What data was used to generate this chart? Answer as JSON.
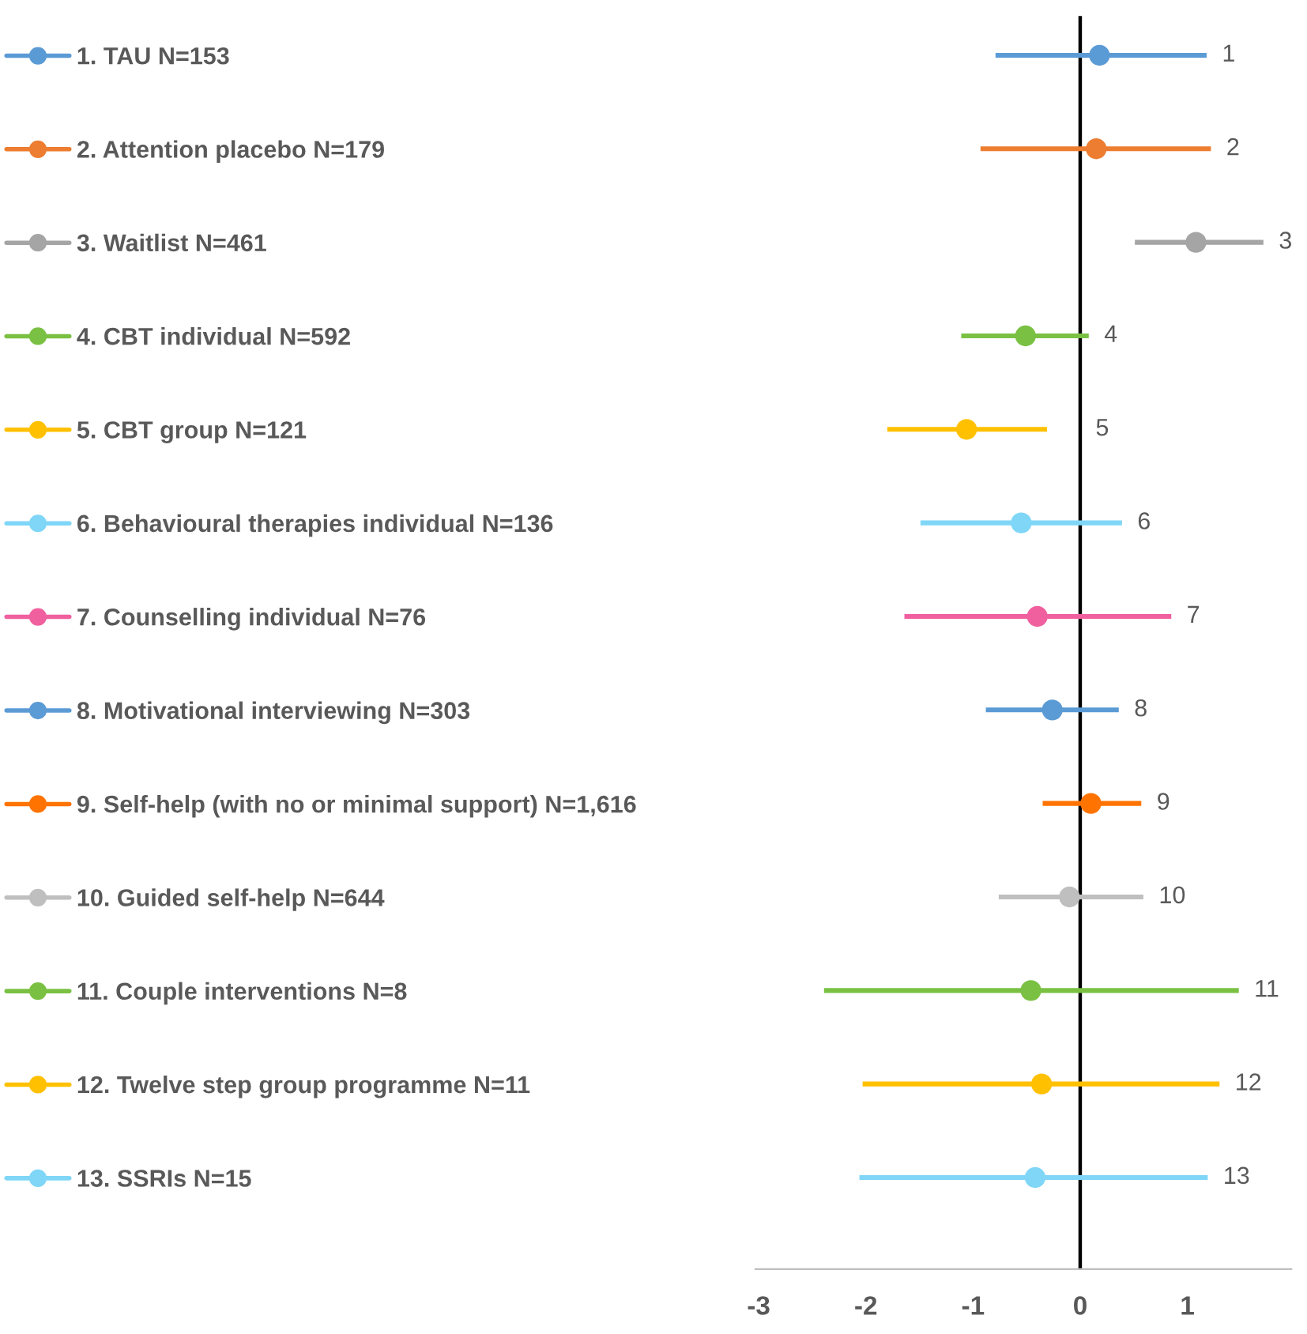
{
  "chart_data": {
    "type": "scatter",
    "orientation": "horizontal",
    "marker": "circle",
    "legend": "left",
    "tick_labels": "x",
    "categories": [
      "1",
      "2",
      "3",
      "4",
      "5",
      "6",
      "7",
      "8",
      "9",
      "10",
      "11",
      "12",
      "13"
    ],
    "xlim": [
      -3.03,
      1.97
    ],
    "xticks": [
      -3,
      -2,
      -1,
      0,
      1
    ],
    "ref_lines": [
      {
        "axis": "x",
        "value": 0,
        "color": "#000000"
      }
    ],
    "series": [
      {
        "name": "1. TAU N=153",
        "color": "#5b9bd5",
        "values": [
          0.18,
          null,
          null,
          null,
          null,
          null,
          null,
          null,
          null,
          null,
          null,
          null,
          null
        ],
        "errors": [
          [
            -0.79,
            1.18
          ],
          null,
          null,
          null,
          null,
          null,
          null,
          null,
          null,
          null,
          null,
          null,
          null
        ]
      },
      {
        "name": "2. Attention placebo N=179",
        "color": "#ed7d31",
        "values": [
          null,
          0.15,
          null,
          null,
          null,
          null,
          null,
          null,
          null,
          null,
          null,
          null,
          null
        ],
        "errors": [
          null,
          [
            -0.93,
            1.22
          ],
          null,
          null,
          null,
          null,
          null,
          null,
          null,
          null,
          null,
          null,
          null
        ]
      },
      {
        "name": "3. Waitlist N=461",
        "color": "#a5a5a5",
        "values": [
          null,
          null,
          1.08,
          null,
          null,
          null,
          null,
          null,
          null,
          null,
          null,
          null,
          null
        ],
        "errors": [
          null,
          null,
          [
            0.51,
            1.71
          ],
          null,
          null,
          null,
          null,
          null,
          null,
          null,
          null,
          null,
          null
        ]
      },
      {
        "name": "4. CBT individual N=592",
        "color": "#7ac143",
        "values": [
          null,
          null,
          null,
          -0.51,
          null,
          null,
          null,
          null,
          null,
          null,
          null,
          null,
          null
        ],
        "errors": [
          null,
          null,
          null,
          [
            -1.11,
            0.08
          ],
          null,
          null,
          null,
          null,
          null,
          null,
          null,
          null,
          null
        ]
      },
      {
        "name": "5. CBT group N=121",
        "color": "#ffc000",
        "values": [
          null,
          null,
          null,
          null,
          -1.06,
          null,
          null,
          null,
          null,
          null,
          null,
          null,
          null
        ],
        "errors": [
          null,
          null,
          null,
          null,
          [
            -1.8,
            -0.31
          ],
          null,
          null,
          null,
          null,
          null,
          null,
          null,
          null
        ]
      },
      {
        "name": "6. Behavioural therapies individual N=136",
        "color": "#7fd6f7",
        "values": [
          null,
          null,
          null,
          null,
          null,
          -0.55,
          null,
          null,
          null,
          null,
          null,
          null,
          null
        ],
        "errors": [
          null,
          null,
          null,
          null,
          null,
          [
            -1.49,
            0.39
          ],
          null,
          null,
          null,
          null,
          null,
          null,
          null
        ]
      },
      {
        "name": "7. Counselling individual N=76",
        "color": "#f0609e",
        "values": [
          null,
          null,
          null,
          null,
          null,
          null,
          -0.4,
          null,
          null,
          null,
          null,
          null,
          null
        ],
        "errors": [
          null,
          null,
          null,
          null,
          null,
          null,
          [
            -1.64,
            0.85
          ],
          null,
          null,
          null,
          null,
          null,
          null
        ]
      },
      {
        "name": "8. Motivational interviewing N=303",
        "color": "#5b9bd5",
        "values": [
          null,
          null,
          null,
          null,
          null,
          null,
          null,
          -0.26,
          null,
          null,
          null,
          null,
          null
        ],
        "errors": [
          null,
          null,
          null,
          null,
          null,
          null,
          null,
          [
            -0.88,
            0.36
          ],
          null,
          null,
          null,
          null,
          null
        ]
      },
      {
        "name": "9. Self-help (with no or minimal support) N=1,616",
        "color": "#ff7300",
        "values": [
          null,
          null,
          null,
          null,
          null,
          null,
          null,
          null,
          0.1,
          null,
          null,
          null,
          null
        ],
        "errors": [
          null,
          null,
          null,
          null,
          null,
          null,
          null,
          null,
          [
            -0.35,
            0.57
          ],
          null,
          null,
          null,
          null
        ]
      },
      {
        "name": "10. Guided self-help N=644",
        "color": "#bfbfbf",
        "values": [
          null,
          null,
          null,
          null,
          null,
          null,
          null,
          null,
          null,
          -0.1,
          null,
          null,
          null
        ],
        "errors": [
          null,
          null,
          null,
          null,
          null,
          null,
          null,
          null,
          null,
          [
            -0.76,
            0.59
          ],
          null,
          null,
          null
        ]
      },
      {
        "name": "11. Couple interventions N=8",
        "color": "#7ac143",
        "values": [
          null,
          null,
          null,
          null,
          null,
          null,
          null,
          null,
          null,
          null,
          -0.46,
          null,
          null
        ],
        "errors": [
          null,
          null,
          null,
          null,
          null,
          null,
          null,
          null,
          null,
          null,
          [
            -2.39,
            1.48
          ],
          null,
          null
        ]
      },
      {
        "name": "12. Twelve step group programme N=11",
        "color": "#ffc000",
        "values": [
          null,
          null,
          null,
          null,
          null,
          null,
          null,
          null,
          null,
          null,
          null,
          -0.36,
          null
        ],
        "errors": [
          null,
          null,
          null,
          null,
          null,
          null,
          null,
          null,
          null,
          null,
          null,
          [
            -2.03,
            1.3
          ],
          null
        ]
      },
      {
        "name": "13. SSRIs N=15",
        "color": "#7fd6f7",
        "values": [
          null,
          null,
          null,
          null,
          null,
          null,
          null,
          null,
          null,
          null,
          null,
          null,
          -0.42
        ],
        "errors": [
          null,
          null,
          null,
          null,
          null,
          null,
          null,
          null,
          null,
          null,
          null,
          null,
          [
            -2.06,
            1.19
          ]
        ]
      }
    ]
  }
}
